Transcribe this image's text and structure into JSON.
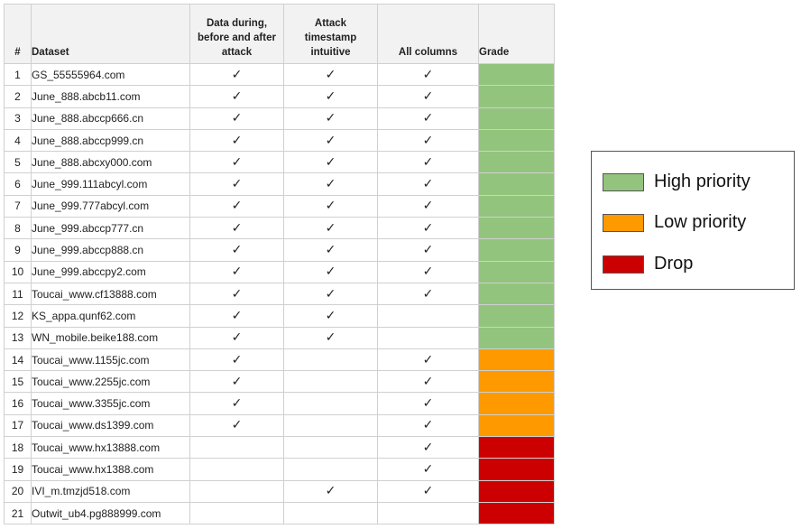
{
  "table": {
    "headers": {
      "num": "#",
      "dataset": "Dataset",
      "during": [
        "Data during,",
        "before and after",
        "attack"
      ],
      "timestamp": [
        "Attack",
        "timestamp",
        "intuitive"
      ],
      "all_columns": "All columns",
      "grade": "Grade"
    },
    "check_symbol": "✓",
    "rows": [
      {
        "num": "1",
        "dataset": "GS_55555964.com",
        "during": true,
        "timestamp": true,
        "all_columns": true,
        "grade": "high"
      },
      {
        "num": "2",
        "dataset": "June_888.abcb11.com",
        "during": true,
        "timestamp": true,
        "all_columns": true,
        "grade": "high"
      },
      {
        "num": "3",
        "dataset": "June_888.abccp666.cn",
        "during": true,
        "timestamp": true,
        "all_columns": true,
        "grade": "high"
      },
      {
        "num": "4",
        "dataset": "June_888.abccp999.cn",
        "during": true,
        "timestamp": true,
        "all_columns": true,
        "grade": "high"
      },
      {
        "num": "5",
        "dataset": "June_888.abcxy000.com",
        "during": true,
        "timestamp": true,
        "all_columns": true,
        "grade": "high"
      },
      {
        "num": "6",
        "dataset": "June_999.111abcyl.com",
        "during": true,
        "timestamp": true,
        "all_columns": true,
        "grade": "high"
      },
      {
        "num": "7",
        "dataset": "June_999.777abcyl.com",
        "during": true,
        "timestamp": true,
        "all_columns": true,
        "grade": "high"
      },
      {
        "num": "8",
        "dataset": "June_999.abccp777.cn",
        "during": true,
        "timestamp": true,
        "all_columns": true,
        "grade": "high"
      },
      {
        "num": "9",
        "dataset": "June_999.abccp888.cn",
        "during": true,
        "timestamp": true,
        "all_columns": true,
        "grade": "high"
      },
      {
        "num": "10",
        "dataset": "June_999.abccpy2.com",
        "during": true,
        "timestamp": true,
        "all_columns": true,
        "grade": "high"
      },
      {
        "num": "11",
        "dataset": "Toucai_www.cf13888.com",
        "during": true,
        "timestamp": true,
        "all_columns": true,
        "grade": "high"
      },
      {
        "num": "12",
        "dataset": "KS_appa.qunf62.com",
        "during": true,
        "timestamp": true,
        "all_columns": false,
        "grade": "high"
      },
      {
        "num": "13",
        "dataset": "WN_mobile.beike188.com",
        "during": true,
        "timestamp": true,
        "all_columns": false,
        "grade": "high"
      },
      {
        "num": "14",
        "dataset": "Toucai_www.1155jc.com",
        "during": true,
        "timestamp": false,
        "all_columns": true,
        "grade": "low"
      },
      {
        "num": "15",
        "dataset": "Toucai_www.2255jc.com",
        "during": true,
        "timestamp": false,
        "all_columns": true,
        "grade": "low"
      },
      {
        "num": "16",
        "dataset": "Toucai_www.3355jc.com",
        "during": true,
        "timestamp": false,
        "all_columns": true,
        "grade": "low"
      },
      {
        "num": "17",
        "dataset": "Toucai_www.ds1399.com",
        "during": true,
        "timestamp": false,
        "all_columns": true,
        "grade": "low"
      },
      {
        "num": "18",
        "dataset": "Toucai_www.hx13888.com",
        "during": false,
        "timestamp": false,
        "all_columns": true,
        "grade": "drop"
      },
      {
        "num": "19",
        "dataset": "Toucai_www.hx1388.com",
        "during": false,
        "timestamp": false,
        "all_columns": true,
        "grade": "drop"
      },
      {
        "num": "20",
        "dataset": "IVI_m.tmzjd518.com",
        "during": false,
        "timestamp": true,
        "all_columns": true,
        "grade": "drop"
      },
      {
        "num": "21",
        "dataset": "Outwit_ub4.pg888999.com",
        "during": false,
        "timestamp": false,
        "all_columns": false,
        "grade": "drop"
      }
    ]
  },
  "legend": {
    "items": [
      {
        "key": "high",
        "label": "High priority",
        "color": "#93c47d"
      },
      {
        "key": "low",
        "label": "Low priority",
        "color": "#ff9900"
      },
      {
        "key": "drop",
        "label": "Drop",
        "color": "#cc0000"
      }
    ]
  }
}
